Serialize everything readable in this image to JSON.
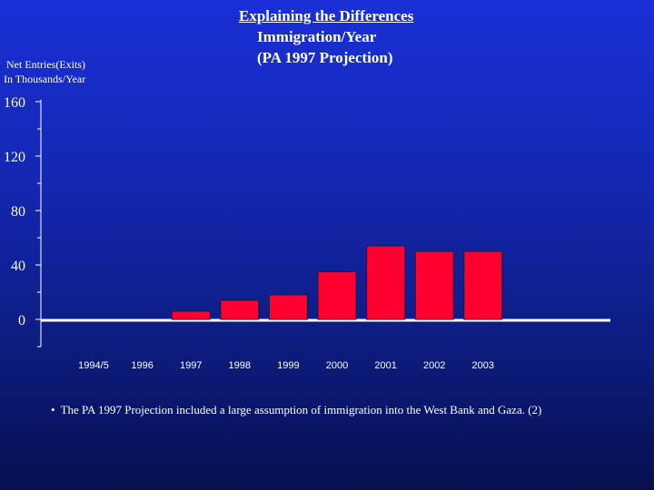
{
  "slide": {
    "title_line1": "Explaining the Differences",
    "title_line2": "Immigration/Year",
    "title_line3": "(PA 1997 Projection)",
    "ylabel_line1": "Net Entries(Exits)",
    "ylabel_line2": "In Thousands/Year",
    "footnote": "The PA 1997 Projection included a large assumption of immigration into the West Bank and Gaza. (2)"
  },
  "chart_data": {
    "type": "bar",
    "title": "Immigration/Year",
    "subtitle": "(PA 1997 Projection)",
    "ylabel": "Net Entries(Exits) In Thousands/Year",
    "categories": [
      "1994/5",
      "1996",
      "1997",
      "1998",
      "1999",
      "2000",
      "2001",
      "2002",
      "2003"
    ],
    "values": [
      0,
      0,
      6,
      14,
      18,
      35,
      54,
      50,
      50
    ],
    "yticks": [
      0,
      40,
      80,
      120,
      160
    ],
    "ylim": [
      -20,
      160
    ],
    "grid": false,
    "bar_color": "#ff0030",
    "text_color": "#ffffff"
  }
}
